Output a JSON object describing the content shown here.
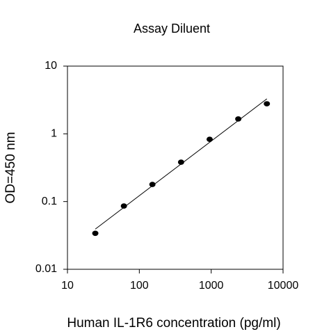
{
  "chart_data": {
    "type": "scatter",
    "title": "Assay Diluent",
    "x_label": "Human IL-1R6 concentration (pg/ml)",
    "y_label": "OD=450 nm",
    "x": [
      24.4,
      61,
      152,
      381,
      952,
      2381,
      5952
    ],
    "values": [
      0.034,
      0.086,
      0.179,
      0.382,
      0.83,
      1.66,
      2.78
    ],
    "color": "#000000",
    "xscale": "log",
    "yscale": "log",
    "trendline": true,
    "xlim": [
      10,
      10000
    ],
    "xticks": [
      10,
      100,
      1000,
      10000
    ],
    "ylim": [
      0.01,
      10
    ],
    "yticks": [
      0.01,
      0.1,
      1,
      10
    ]
  }
}
